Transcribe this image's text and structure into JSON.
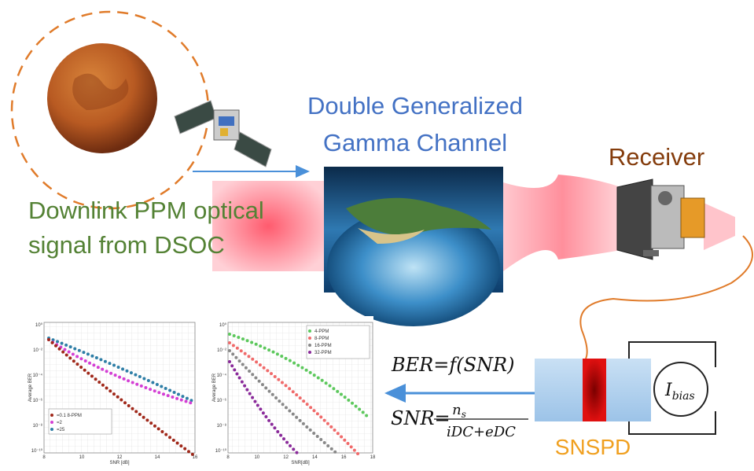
{
  "title": {
    "line1": "Double Generalized",
    "line2": "Gamma Channel"
  },
  "source": {
    "line1": "Downlink PPM optical",
    "line2": "signal from DSOC"
  },
  "receiver": "Receiver",
  "detector": "SNSPD",
  "current": {
    "symbol": "I",
    "subscript": "bias"
  },
  "formulas": {
    "ber": "BER=f(SNR)",
    "snr_lhs": "SNR=",
    "numerator": {
      "symbol": "n",
      "subscript": "s"
    },
    "denominator": "iDC+eDC"
  },
  "plots": [
    {
      "xlabel": "SNR [dB]",
      "ylabel": "Average BER",
      "xticks": [
        "8",
        "10",
        "12",
        "14",
        "16"
      ],
      "yticks": [
        "10⁰",
        "10⁻²",
        "10⁻⁴",
        "10⁻⁶",
        "10⁻⁸",
        "10⁻¹⁰"
      ],
      "legend": [
        "=0.1  8-PPM",
        "=2",
        "=25"
      ]
    },
    {
      "xlabel": "SNR[dB]",
      "ylabel": "Average BER",
      "xticks": [
        "8",
        "10",
        "12",
        "14",
        "16",
        "18"
      ],
      "yticks": [
        "10⁰",
        "10⁻²",
        "10⁻⁴",
        "10⁻⁶",
        "10⁻⁸",
        "10⁻¹⁰"
      ],
      "legend": [
        "4-PPM",
        "8-PPM",
        "16-PPM",
        "32-PPM"
      ]
    }
  ]
}
